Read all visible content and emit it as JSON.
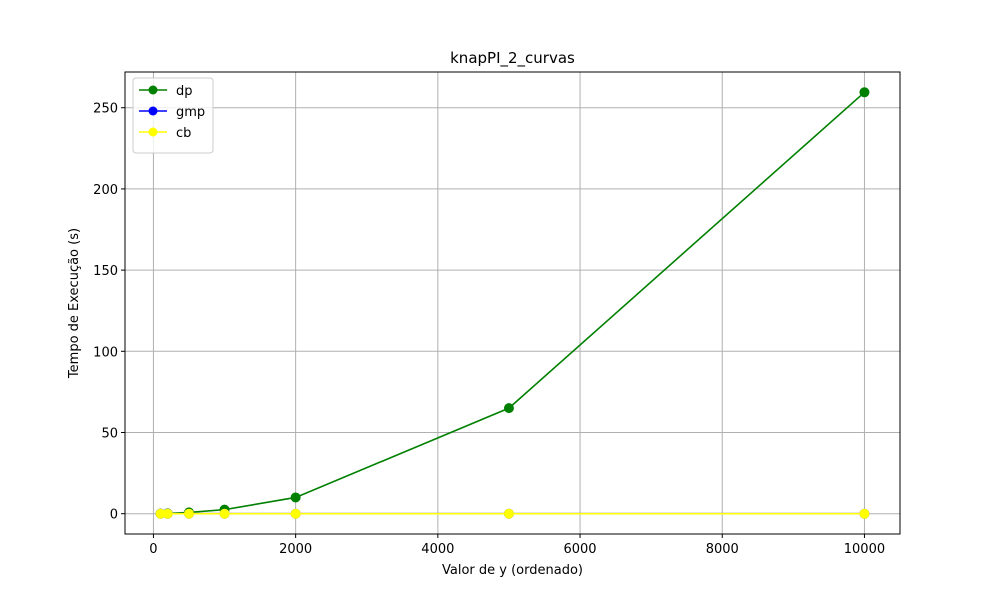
{
  "chart_data": {
    "type": "line",
    "title": "knapPI_2_curvas",
    "xlabel": "Valor de y (ordenado)",
    "ylabel": "Tempo de Execução (s)",
    "xlim": [
      -400,
      10500
    ],
    "ylim": [
      -12.5,
      272
    ],
    "xticks": [
      0,
      2000,
      4000,
      6000,
      8000,
      10000
    ],
    "yticks": [
      0,
      50,
      100,
      150,
      200,
      250
    ],
    "grid": true,
    "legend_position": "top-left",
    "x": [
      100,
      200,
      500,
      1000,
      2000,
      5000,
      10000
    ],
    "series": [
      {
        "name": "dp",
        "color": "#008000",
        "values": [
          0.05,
          0.2,
          0.8,
          2.5,
          10,
          65,
          259.5
        ]
      },
      {
        "name": "gmp",
        "color": "#0000ff",
        "values": [
          0,
          0,
          0,
          0,
          0,
          0,
          0
        ]
      },
      {
        "name": "cb",
        "color": "#ffff00",
        "values": [
          0,
          0,
          0,
          0,
          0,
          0,
          0
        ]
      }
    ]
  }
}
